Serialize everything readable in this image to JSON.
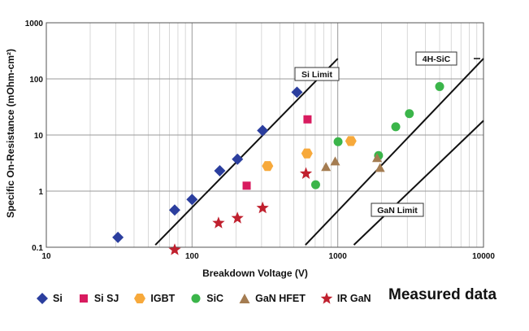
{
  "chart_data": {
    "type": "scatter",
    "xscale": "log",
    "yscale": "log",
    "xlim": [
      10,
      10000
    ],
    "ylim": [
      0.1,
      1000
    ],
    "xlabel": "Breakdown Voltage (V)",
    "ylabel": "Specific On-Resistance (mOhm-cm²)",
    "x_ticks": [
      "10",
      "100",
      "1000",
      "10000"
    ],
    "y_ticks": [
      "0.1",
      "1",
      "10",
      "100",
      "1000"
    ],
    "grid": true,
    "legend_position": "bottom",
    "series": [
      {
        "name": "Si",
        "marker": "diamond",
        "color": "#2b3e9e",
        "points": [
          [
            31,
            0.15
          ],
          [
            76,
            0.46
          ],
          [
            100,
            0.71
          ],
          [
            155,
            2.3
          ],
          [
            205,
            3.7
          ],
          [
            305,
            12
          ],
          [
            525,
            58
          ]
        ]
      },
      {
        "name": "Si SJ",
        "marker": "square",
        "color": "#d81b5f",
        "points": [
          [
            237,
            1.25
          ],
          [
            620,
            19
          ]
        ]
      },
      {
        "name": "IGBT",
        "marker": "hexagon",
        "color": "#f7a93b",
        "points": [
          [
            330,
            2.8
          ],
          [
            615,
            4.7
          ],
          [
            1230,
            7.8
          ]
        ]
      },
      {
        "name": "SiC",
        "marker": "circle",
        "color": "#3bb54a",
        "points": [
          [
            705,
            1.3
          ],
          [
            1005,
            7.6
          ],
          [
            1905,
            4.3
          ],
          [
            2500,
            14
          ],
          [
            3100,
            24
          ],
          [
            5000,
            73
          ]
        ]
      },
      {
        "name": "GaN HFET",
        "marker": "triangle",
        "color": "#a47c51",
        "points": [
          [
            830,
            2.7
          ],
          [
            960,
            3.4
          ],
          [
            1860,
            3.9
          ],
          [
            1950,
            2.6
          ]
        ]
      },
      {
        "name": "IR GaN",
        "marker": "star",
        "color": "#c0202e",
        "points": [
          [
            76,
            0.09
          ],
          [
            152,
            0.27
          ],
          [
            205,
            0.33
          ],
          [
            305,
            0.5
          ],
          [
            605,
            2.05
          ]
        ]
      }
    ],
    "limit_lines": [
      {
        "label": "Si Limit",
        "points": [
          [
            56,
            0.11
          ],
          [
            1000,
            230
          ]
        ]
      },
      {
        "label": "4H-SiC",
        "points": [
          [
            600,
            0.11
          ],
          [
            10000,
            230
          ]
        ]
      },
      {
        "label": "GaN Limit",
        "points": [
          [
            1290,
            0.11
          ],
          [
            10000,
            18
          ]
        ]
      }
    ]
  },
  "legend_items": [
    {
      "label": "Si"
    },
    {
      "label": "Si SJ"
    },
    {
      "label": "IGBT"
    },
    {
      "label": "SiC"
    },
    {
      "label": "GaN HFET"
    },
    {
      "label": "IR GaN"
    }
  ],
  "caption": "Measured data"
}
